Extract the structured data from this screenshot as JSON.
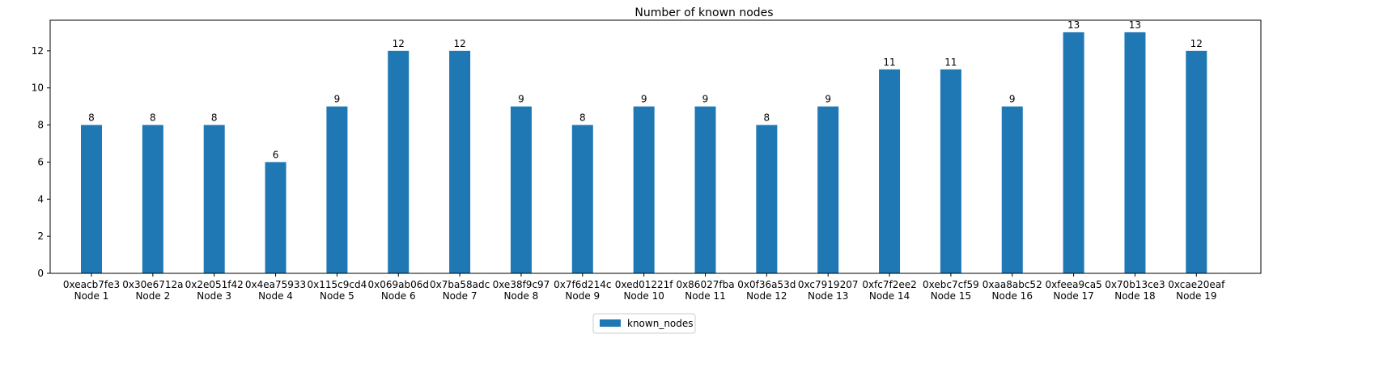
{
  "chart_data": {
    "type": "bar",
    "title": "Number of known nodes",
    "xlabel": "",
    "ylabel": "",
    "ylim": [
      0,
      13.65
    ],
    "yticks": [
      0,
      2,
      4,
      6,
      8,
      10,
      12
    ],
    "grid": false,
    "legend_position": "bottom-center",
    "categories": [
      [
        "0xeacb7fe3",
        "Node 1"
      ],
      [
        "0x30e6712a",
        "Node 2"
      ],
      [
        "0x2e051f42",
        "Node 3"
      ],
      [
        "0x4ea75933",
        "Node 4"
      ],
      [
        "0x115c9cd4",
        "Node 5"
      ],
      [
        "0x069ab06d",
        "Node 6"
      ],
      [
        "0x7ba58adc",
        "Node 7"
      ],
      [
        "0xe38f9c97",
        "Node 8"
      ],
      [
        "0x7f6d214c",
        "Node 9"
      ],
      [
        "0xed01221f",
        "Node 10"
      ],
      [
        "0x86027fba",
        "Node 11"
      ],
      [
        "0x0f36a53d",
        "Node 12"
      ],
      [
        "0xc7919207",
        "Node 13"
      ],
      [
        "0xfc7f2ee2",
        "Node 14"
      ],
      [
        "0xebc7cf59",
        "Node 15"
      ],
      [
        "0xaa8abc52",
        "Node 16"
      ],
      [
        "0xfeea9ca5",
        "Node 17"
      ],
      [
        "0x70b13ce3",
        "Node 18"
      ],
      [
        "0xcae20eaf",
        "Node 19"
      ]
    ],
    "series": [
      {
        "name": "known_nodes",
        "color": "#1f77b4",
        "values": [
          8,
          8,
          8,
          6,
          9,
          12,
          12,
          9,
          8,
          9,
          9,
          8,
          9,
          11,
          11,
          9,
          13,
          13,
          12
        ]
      }
    ]
  }
}
